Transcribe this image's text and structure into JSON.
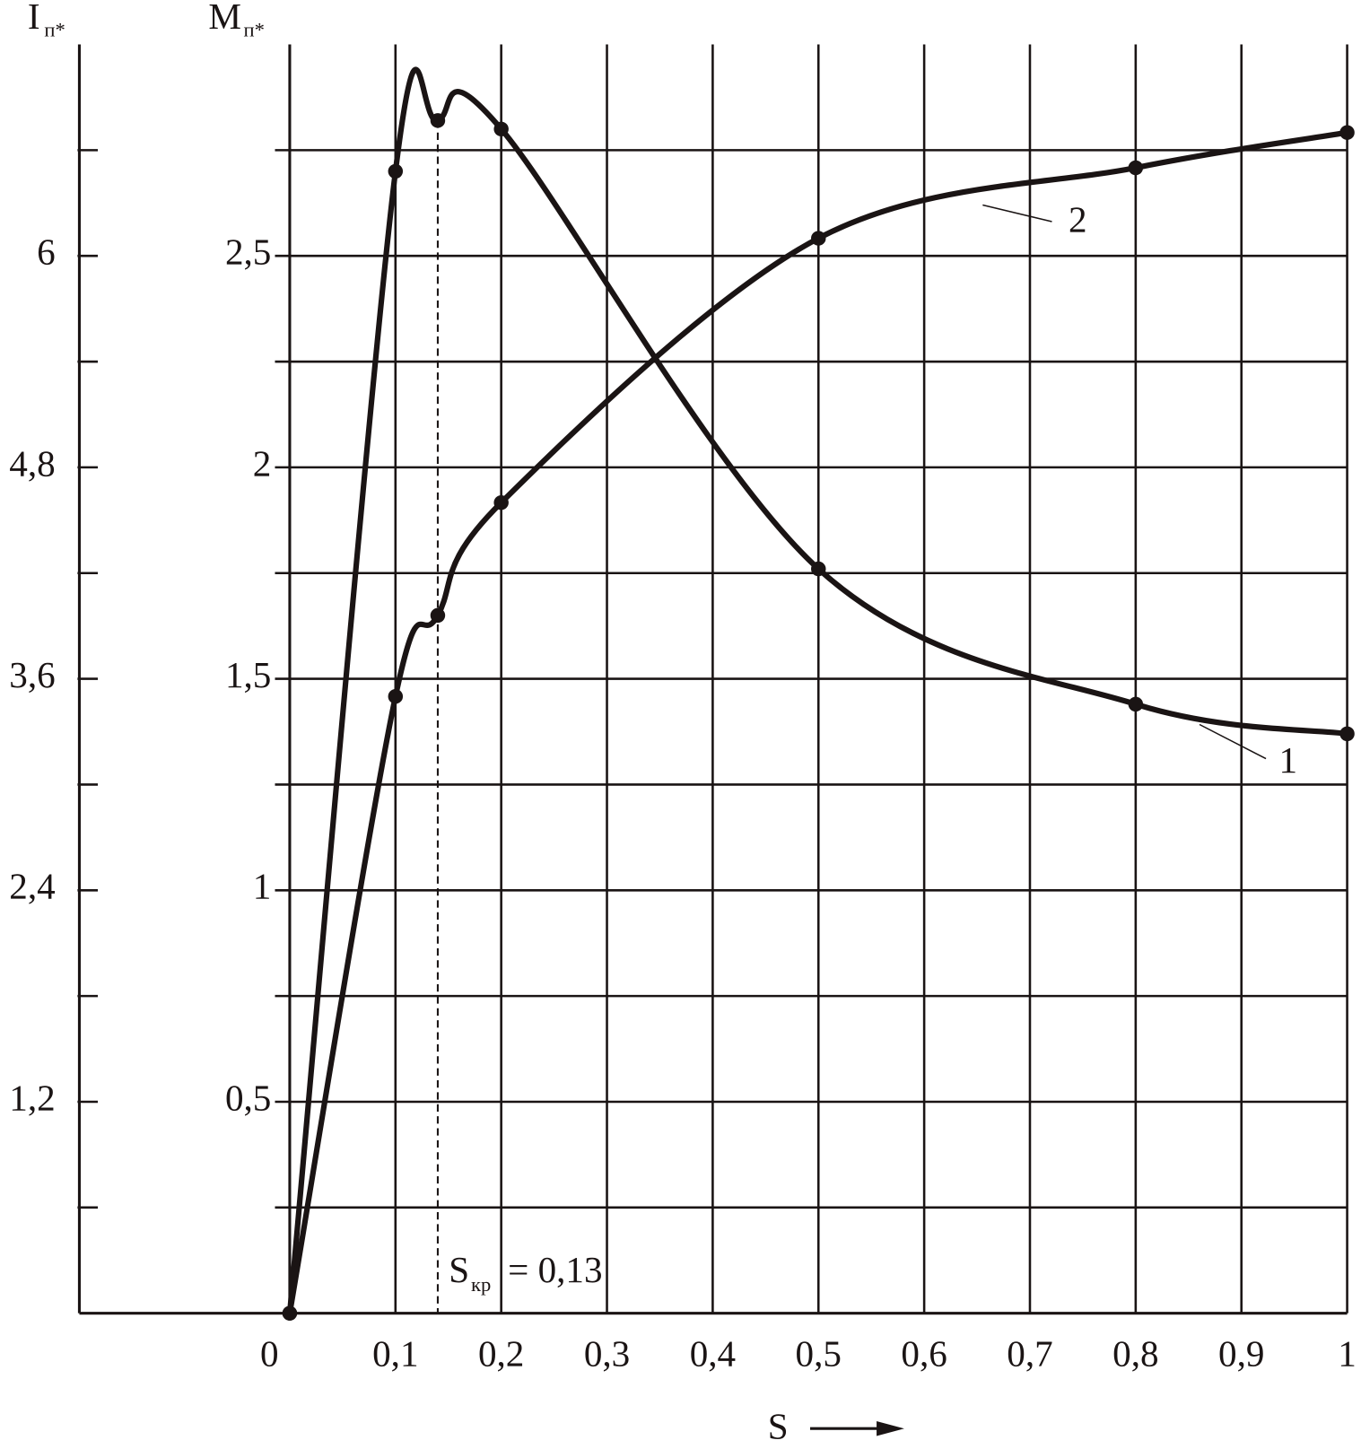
{
  "chart_data": {
    "type": "line",
    "x_label": "S",
    "y_label": "M",
    "y_label_sub": "п*",
    "y2_label": "I",
    "y2_label_sub": "п*",
    "x": [
      0,
      0.1,
      0.14,
      0.2,
      0.5,
      0.8,
      1
    ],
    "series": [
      {
        "name": "1",
        "color": "#1a1414",
        "values": [
          0,
          2.7,
          2.82,
          2.8,
          1.76,
          1.44,
          1.37
        ]
      },
      {
        "name": "2",
        "color": "#1a1414",
        "axis": "y2",
        "values": [
          0,
          3.5,
          3.96,
          4.6,
          6.1,
          6.5,
          6.7
        ]
      }
    ],
    "xlim": [
      0,
      1
    ],
    "xticks": [
      0,
      {
        "value": 0.1,
        "label": "0,1"
      },
      {
        "value": 0.2,
        "label": "0,2"
      },
      {
        "value": 0.3,
        "label": "0,3"
      },
      {
        "value": 0.4,
        "label": "0,4"
      },
      {
        "value": 0.5,
        "label": "0,5"
      },
      {
        "value": 0.6,
        "label": "0,6"
      },
      {
        "value": 0.7,
        "label": "0,7"
      },
      {
        "value": 0.8,
        "label": "0,8"
      },
      {
        "value": 0.9,
        "label": "0,9"
      },
      1
    ],
    "ylim": [
      0,
      3
    ],
    "yticks": [
      {
        "value": 0.5,
        "label": "0,5"
      },
      1,
      {
        "value": 1.5,
        "label": "1,5"
      },
      2,
      {
        "value": 2.5,
        "label": "2,5"
      }
    ],
    "y_minor_ticks": [
      0.25,
      0.75,
      1.25,
      1.75,
      2.25,
      2.75
    ],
    "y2lim": [
      0,
      7.2
    ],
    "y2ticks": [
      {
        "value": 1.2,
        "label": "1,2"
      },
      {
        "value": 2.4,
        "label": "2,4"
      },
      {
        "value": 3.6,
        "label": "3,6"
      },
      {
        "value": 4.8,
        "label": "4,8"
      },
      6
    ],
    "y2_minor_ticks": [
      0.6,
      1.8,
      3.0,
      4.2,
      5.4,
      6.6
    ],
    "grid": true,
    "annotation": {
      "text": "S",
      "sub": "кр",
      "rest": "= 0,13",
      "x": 0.14
    }
  }
}
